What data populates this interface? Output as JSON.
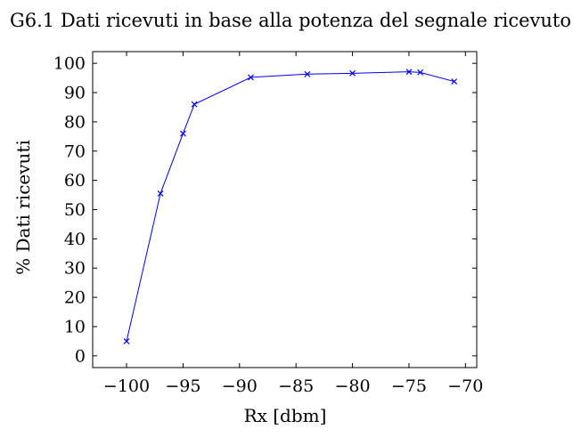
{
  "chart_data": {
    "type": "line",
    "title": "G6.1 Dati ricevuti in base alla potenza del segnale ricevuto",
    "xlabel": "Rx [dbm]",
    "ylabel": "% Dati ricevuti",
    "xlim": [
      -103,
      -69
    ],
    "ylim": [
      -4,
      104
    ],
    "xticks": [
      -100,
      -95,
      -90,
      -85,
      -80,
      -75,
      -70
    ],
    "xtick_labels": [
      "−100",
      "−95",
      "−90",
      "−85",
      "−80",
      "−75",
      "−70"
    ],
    "yticks": [
      0,
      10,
      20,
      30,
      40,
      50,
      60,
      70,
      80,
      90,
      100
    ],
    "ytick_labels": [
      "0",
      "10",
      "20",
      "30",
      "40",
      "50",
      "60",
      "70",
      "80",
      "90",
      "100"
    ],
    "grid": false,
    "series": [
      {
        "color": "#0000ff",
        "marker": "x",
        "x": [
          -100,
          -97,
          -95,
          -94,
          -89,
          -84,
          -80,
          -75,
          -74,
          -71
        ],
        "y": [
          5,
          55.5,
          76,
          86,
          95.2,
          96.3,
          96.6,
          97.1,
          96.9,
          93.8
        ]
      }
    ]
  }
}
